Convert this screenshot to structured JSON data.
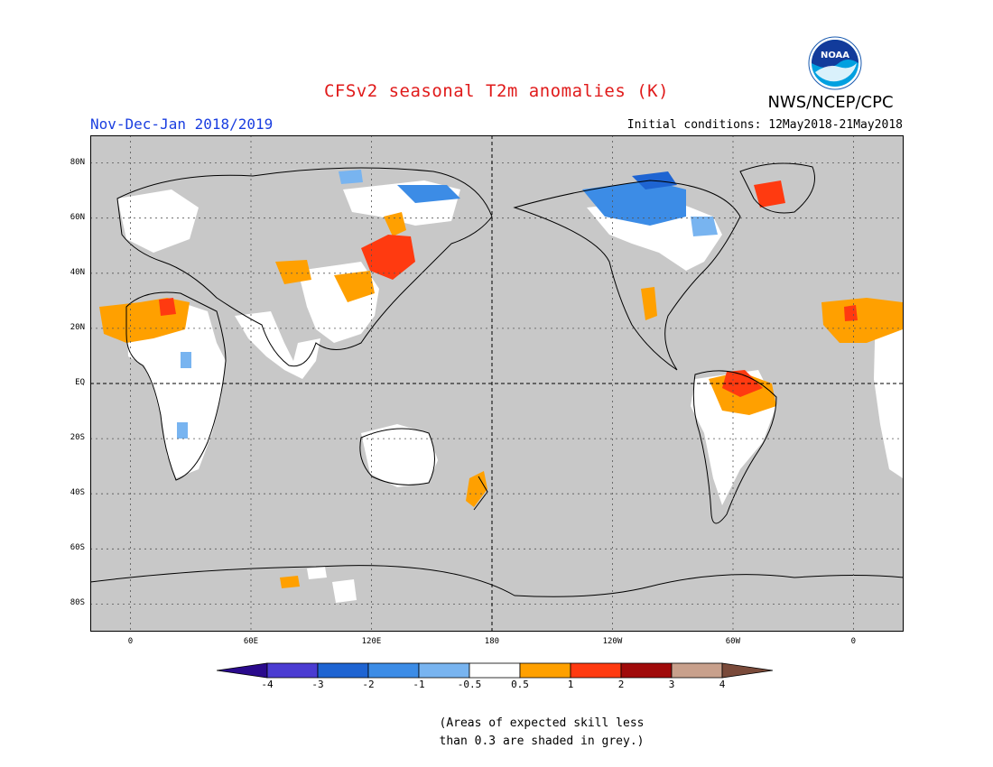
{
  "title": "CFSv2 seasonal T2m anomalies (K)",
  "season": "Nov-Dec-Jan 2018/2019",
  "initial_conditions": "Initial conditions: 12May2018-21May2018",
  "agency": "NWS/NCEP/CPC",
  "logo_text": "NOAA",
  "map": {
    "lat_labels": [
      "80N",
      "60N",
      "40N",
      "20N",
      "EQ",
      "20S",
      "40S",
      "60S",
      "80S"
    ],
    "lat_values": [
      80,
      60,
      40,
      20,
      0,
      -20,
      -40,
      -60,
      -80
    ],
    "lon_labels": [
      "0",
      "60E",
      "120E",
      "180",
      "120W",
      "60W",
      "0"
    ],
    "lon_values": [
      0,
      60,
      120,
      180,
      240,
      300,
      360
    ],
    "lon_range": [
      -20,
      385
    ],
    "lat_range": [
      -90,
      90
    ],
    "grey_mask_note": "(Areas of expected skill less than 0.3 are shaded in grey.)",
    "colors": {
      "ocean_land_grey": "#c8c8c8",
      "white": "#ffffff",
      "orange": "#ffa000",
      "red_orange": "#ff3a10",
      "light_blue": "#78b4f0",
      "blue": "#3c8ce6",
      "dark_blue": "#1e5ad2"
    }
  },
  "colorbar": {
    "labels": [
      "-4",
      "-3",
      "-2",
      "-1",
      "-0.5",
      "0.5",
      "1",
      "2",
      "3",
      "4"
    ],
    "colors": [
      "#2a0a8c",
      "#4b3cd2",
      "#1e64d2",
      "#3c8ce6",
      "#78b4f0",
      "#ffffff",
      "#ffa000",
      "#ff3a10",
      "#a00a0a",
      "#c8a08c",
      "#7a4a3a"
    ]
  },
  "note": {
    "line1": "(Areas of expected skill less",
    "line2": "than 0.3 are shaded in grey.)"
  }
}
